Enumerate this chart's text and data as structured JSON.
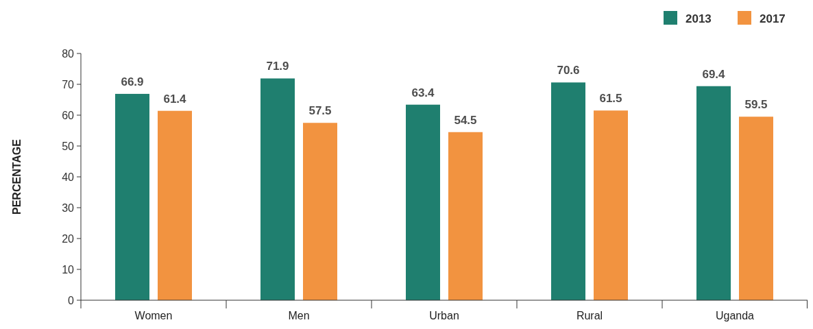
{
  "chart_data": {
    "type": "bar",
    "ylabel": "PERCENTAGE",
    "categories": [
      "Women",
      "Men",
      "Urban",
      "Rural",
      "Uganda"
    ],
    "series": [
      {
        "name": "2013",
        "color": "#1f7f6f",
        "values": [
          66.9,
          71.9,
          63.4,
          70.6,
          69.4
        ]
      },
      {
        "name": "2017",
        "color": "#f29340",
        "values": [
          61.4,
          57.5,
          54.5,
          61.5,
          59.5
        ]
      }
    ],
    "ylim": [
      0,
      80
    ],
    "yticks": [
      0,
      10,
      20,
      30,
      40,
      50,
      60,
      70,
      80
    ],
    "data_labels": true,
    "legend": "top right",
    "grid": false
  }
}
